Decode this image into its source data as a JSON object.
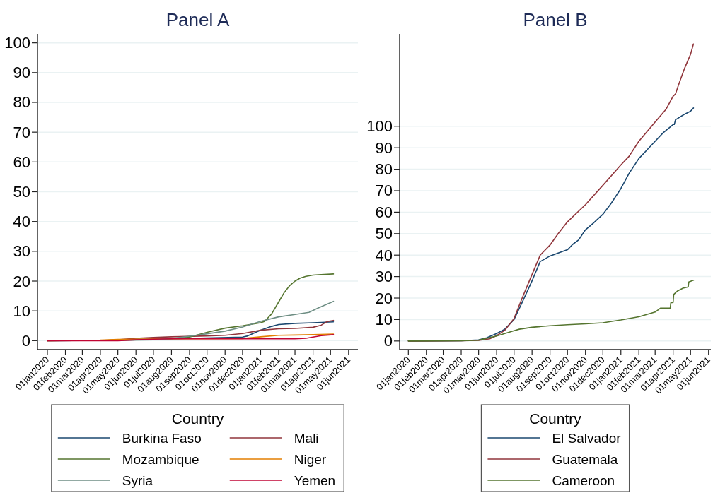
{
  "chart_data": [
    {
      "type": "line",
      "title": "Panel A",
      "legend_title": "Country",
      "legend": "bottom",
      "grid": "y",
      "xlim": [
        "2019-12-15",
        "2021-06-17"
      ],
      "xticks": [
        {
          "value": "2020-01-01",
          "label": "01jan2020"
        },
        {
          "value": "2020-02-01",
          "label": "01feb2020"
        },
        {
          "value": "2020-03-01",
          "label": "01mar2020"
        },
        {
          "value": "2020-04-01",
          "label": "01apr2020"
        },
        {
          "value": "2020-05-01",
          "label": "01may2020"
        },
        {
          "value": "2020-06-01",
          "label": "01jun2020"
        },
        {
          "value": "2020-07-01",
          "label": "01jul2020"
        },
        {
          "value": "2020-08-01",
          "label": "01aug2020"
        },
        {
          "value": "2020-09-01",
          "label": "01sep2020"
        },
        {
          "value": "2020-10-01",
          "label": "01oct2020"
        },
        {
          "value": "2020-11-01",
          "label": "01nov2020"
        },
        {
          "value": "2020-12-01",
          "label": "01dec2020"
        },
        {
          "value": "2021-01-01",
          "label": "01jan2021"
        },
        {
          "value": "2021-02-01",
          "label": "01feb2021"
        },
        {
          "value": "2021-03-01",
          "label": "01mar2021"
        },
        {
          "value": "2021-04-01",
          "label": "01apr2021"
        },
        {
          "value": "2021-05-01",
          "label": "01may2021"
        },
        {
          "value": "2021-06-01",
          "label": "01jun2021"
        }
      ],
      "ylim": [
        -3,
        103
      ],
      "yticks": [
        0,
        10,
        20,
        30,
        40,
        50,
        60,
        70,
        80,
        90,
        100
      ],
      "series": [
        {
          "name": "Burkina Faso",
          "color": "#1a476f",
          "x": [
            "2020-01-01",
            "2020-04-01",
            "2020-06-01",
            "2020-08-01",
            "2020-10-01",
            "2020-12-01",
            "2020-12-10",
            "2021-01-01",
            "2021-01-20",
            "2021-02-01",
            "2021-03-01",
            "2021-04-01",
            "2021-05-06"
          ],
          "values": [
            0,
            0.1,
            0.3,
            0.6,
            0.9,
            1.2,
            1.6,
            3.5,
            4.8,
            5.4,
            5.8,
            6.0,
            6.3
          ]
        },
        {
          "name": "Mali",
          "color": "#90353b",
          "x": [
            "2020-01-01",
            "2020-04-01",
            "2020-05-01",
            "2020-06-01",
            "2020-07-01",
            "2020-08-01",
            "2020-10-01",
            "2020-11-01",
            "2020-12-01",
            "2021-01-01",
            "2021-02-01",
            "2021-03-01",
            "2021-04-01",
            "2021-04-15",
            "2021-04-25",
            "2021-05-06"
          ],
          "values": [
            0,
            0.1,
            0.3,
            0.8,
            1.1,
            1.3,
            1.6,
            1.8,
            2.4,
            3.5,
            4.0,
            4.1,
            4.5,
            5.2,
            6.4,
            6.8
          ]
        },
        {
          "name": "Mozambique",
          "color": "#55752f",
          "x": [
            "2020-06-01",
            "2020-08-01",
            "2020-09-01",
            "2020-10-01",
            "2020-11-01",
            "2020-12-01",
            "2021-01-01",
            "2021-01-08",
            "2021-01-20",
            "2021-02-01",
            "2021-02-10",
            "2021-02-20",
            "2021-03-01",
            "2021-03-10",
            "2021-03-20",
            "2021-04-01",
            "2021-04-15",
            "2021-05-06"
          ],
          "values": [
            0.4,
            0.7,
            1.2,
            2.8,
            4.2,
            5.0,
            6.0,
            6.5,
            9,
            13,
            16,
            18.5,
            20,
            21,
            21.6,
            22,
            22.2,
            22.4
          ]
        },
        {
          "name": "Niger",
          "color": "#e37e00",
          "x": [
            "2020-01-01",
            "2020-04-01",
            "2020-05-01",
            "2020-06-01",
            "2020-08-01",
            "2020-12-01",
            "2021-01-01",
            "2021-02-01",
            "2021-03-01",
            "2021-04-01",
            "2021-05-06"
          ],
          "values": [
            0,
            0.2,
            0.4,
            0.5,
            0.6,
            0.7,
            1.3,
            1.8,
            1.9,
            2.0,
            2.2
          ]
        },
        {
          "name": "Syria",
          "color": "#6e8e84",
          "x": [
            "2020-01-01",
            "2020-05-01",
            "2020-07-01",
            "2020-08-01",
            "2020-09-01",
            "2020-10-01",
            "2020-11-01",
            "2020-12-01",
            "2021-01-01",
            "2021-02-01",
            "2021-03-01",
            "2021-03-25",
            "2021-04-10",
            "2021-05-06"
          ],
          "values": [
            0,
            0.1,
            0.3,
            0.7,
            1.5,
            2.3,
            3.2,
            4.6,
            6.5,
            8.0,
            8.8,
            9.5,
            11,
            13.2
          ]
        },
        {
          "name": "Yemen",
          "color": "#c10534",
          "x": [
            "2020-01-01",
            "2020-05-01",
            "2020-06-01",
            "2020-07-01",
            "2020-08-01",
            "2021-03-01",
            "2021-03-20",
            "2021-04-01",
            "2021-04-15",
            "2021-05-06"
          ],
          "values": [
            0,
            0,
            0.3,
            0.5,
            0.6,
            0.6,
            0.8,
            1.2,
            1.7,
            2.0
          ]
        }
      ]
    },
    {
      "type": "line",
      "title": "Panel B",
      "legend_title": "Country",
      "legend": "bottom",
      "grid": "y",
      "xlim": [
        "2019-12-17",
        "2021-06-05"
      ],
      "xticks": [
        {
          "value": "2020-01-01",
          "label": "01jan2020"
        },
        {
          "value": "2020-02-01",
          "label": "01feb2020"
        },
        {
          "value": "2020-03-01",
          "label": "01mar2020"
        },
        {
          "value": "2020-04-01",
          "label": "01apr2020"
        },
        {
          "value": "2020-05-01",
          "label": "01may2020"
        },
        {
          "value": "2020-06-01",
          "label": "01jun2020"
        },
        {
          "value": "2020-07-01",
          "label": "01jul2020"
        },
        {
          "value": "2020-08-01",
          "label": "01aug2020"
        },
        {
          "value": "2020-09-01",
          "label": "01sep2020"
        },
        {
          "value": "2020-10-01",
          "label": "01oct2020"
        },
        {
          "value": "2020-11-01",
          "label": "01nov2020"
        },
        {
          "value": "2020-12-01",
          "label": "01dec2020"
        },
        {
          "value": "2021-01-01",
          "label": "01jan2021"
        },
        {
          "value": "2021-02-01",
          "label": "01feb2021"
        },
        {
          "value": "2021-03-01",
          "label": "01mar2021"
        },
        {
          "value": "2021-04-01",
          "label": "01apr2021"
        },
        {
          "value": "2021-05-01",
          "label": "01may2021"
        },
        {
          "value": "2021-06-01",
          "label": "01jun2021"
        }
      ],
      "ylim": [
        -4,
        143
      ],
      "yticks": [
        0,
        10,
        20,
        30,
        40,
        50,
        60,
        70,
        80,
        90,
        100
      ],
      "series": [
        {
          "name": "El Salvador",
          "color": "#1a476f",
          "x": [
            "2020-01-01",
            "2020-04-01",
            "2020-05-01",
            "2020-05-15",
            "2020-06-01",
            "2020-06-15",
            "2020-07-01",
            "2020-07-15",
            "2020-08-01",
            "2020-08-15",
            "2020-09-01",
            "2020-09-15",
            "2020-10-01",
            "2020-10-10",
            "2020-10-20",
            "2020-11-01",
            "2020-11-15",
            "2020-12-01",
            "2020-12-15",
            "2021-01-01",
            "2021-01-15",
            "2021-02-01",
            "2021-02-15",
            "2021-03-01",
            "2021-03-15",
            "2021-04-01",
            "2021-04-03",
            "2021-04-05",
            "2021-04-20",
            "2021-05-01",
            "2021-05-06"
          ],
          "values": [
            0,
            0.1,
            0.5,
            1.5,
            3.5,
            5.5,
            10,
            18,
            28,
            37,
            39.6,
            41,
            42.5,
            45,
            47,
            51.8,
            55,
            59,
            64,
            71,
            78,
            85,
            89,
            93,
            97,
            100.8,
            100.8,
            103,
            105.5,
            107,
            108.5
          ]
        },
        {
          "name": "Guatemala",
          "color": "#90353b",
          "x": [
            "2020-01-01",
            "2020-04-01",
            "2020-05-01",
            "2020-05-20",
            "2020-06-01",
            "2020-06-15",
            "2020-07-01",
            "2020-07-15",
            "2020-08-01",
            "2020-08-15",
            "2020-09-01",
            "2020-09-15",
            "2020-10-01",
            "2020-11-01",
            "2020-12-01",
            "2021-01-01",
            "2021-01-15",
            "2021-02-01",
            "2021-03-01",
            "2021-03-20",
            "2021-04-01",
            "2021-04-05",
            "2021-04-10",
            "2021-04-20",
            "2021-05-01",
            "2021-05-06"
          ],
          "values": [
            0,
            0.1,
            0.3,
            1,
            2.5,
            5,
            10.5,
            20,
            31,
            40,
            44.7,
            50,
            55.5,
            63.5,
            72.5,
            82,
            86,
            93,
            102,
            108,
            114,
            115,
            119,
            126.5,
            133.5,
            138.3
          ]
        },
        {
          "name": "Cameroon",
          "color": "#55752f",
          "x": [
            "2020-01-01",
            "2020-04-01",
            "2020-05-01",
            "2020-06-01",
            "2020-06-15",
            "2020-07-01",
            "2020-07-10",
            "2020-08-01",
            "2020-09-01",
            "2020-10-01",
            "2020-11-01",
            "2020-12-01",
            "2021-01-01",
            "2021-02-01",
            "2021-03-01",
            "2021-03-10",
            "2021-03-27",
            "2021-03-28",
            "2021-04-01",
            "2021-04-02",
            "2021-04-08",
            "2021-04-18",
            "2021-04-27",
            "2021-04-28",
            "2021-05-06"
          ],
          "values": [
            0,
            0.1,
            0.4,
            2.3,
            3.5,
            4.8,
            5.5,
            6.4,
            7.1,
            7.6,
            8.0,
            8.5,
            9.8,
            11.3,
            13.5,
            15.3,
            15.3,
            17.8,
            18,
            21.7,
            23.2,
            24.6,
            25.2,
            27.5,
            28.3
          ]
        }
      ]
    }
  ]
}
